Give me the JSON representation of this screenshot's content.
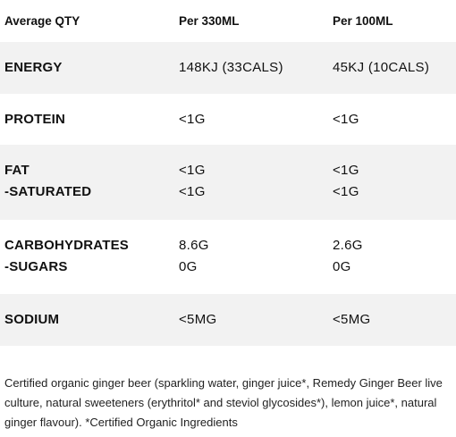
{
  "header": {
    "col1": "Average QTY",
    "col2": "Per 330ML",
    "col3": "Per 100ML"
  },
  "rows": [
    {
      "label_lines": [
        "ENERGY"
      ],
      "per330_lines": [
        "148KJ (33CALS)"
      ],
      "per100_lines": [
        "45KJ (10CALS)"
      ]
    },
    {
      "label_lines": [
        "PROTEIN"
      ],
      "per330_lines": [
        "<1G"
      ],
      "per100_lines": [
        "<1G"
      ]
    },
    {
      "label_lines": [
        "FAT",
        "-SATURATED"
      ],
      "per330_lines": [
        "<1G",
        "<1G"
      ],
      "per100_lines": [
        "<1G",
        "<1G"
      ]
    },
    {
      "label_lines": [
        "CARBOHYDRATES",
        "-SUGARS"
      ],
      "per330_lines": [
        "8.6G",
        "0G"
      ],
      "per100_lines": [
        "2.6G",
        "0G"
      ]
    },
    {
      "label_lines": [
        "SODIUM"
      ],
      "per330_lines": [
        "<5MG"
      ],
      "per100_lines": [
        "<5MG"
      ]
    }
  ],
  "footnote": "Certified organic ginger beer (sparkling water, ginger juice*, Remedy Ginger Beer live culture, natural sweeteners (erythritol* and steviol glycosides*), lemon juice*, natural ginger flavour). *Certified Organic Ingredients",
  "colors": {
    "shaded_row": "#f2f2f2",
    "text": "#111111"
  }
}
